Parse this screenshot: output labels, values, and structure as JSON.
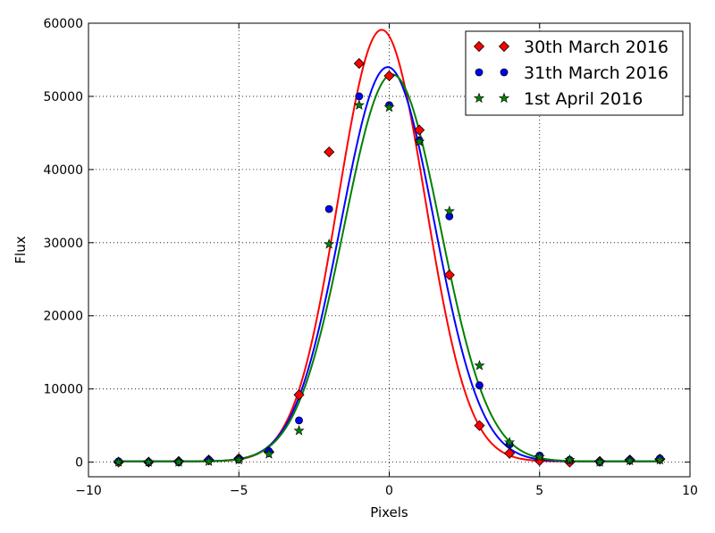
{
  "chart_data": {
    "type": "scatter",
    "xlabel": "Pixels",
    "ylabel": "Flux",
    "xlim": [
      -10,
      10
    ],
    "ylim": [
      -2000,
      60000
    ],
    "xticks": [
      -10,
      -5,
      0,
      5,
      10
    ],
    "yticks": [
      0,
      10000,
      20000,
      30000,
      40000,
      50000,
      60000
    ],
    "grid": true,
    "legend_position": "top-right",
    "series": [
      {
        "name": "30th March 2016",
        "marker": "diamond",
        "color": "#ff0000",
        "x": [
          -9,
          -8,
          -7,
          -6,
          -5,
          -4,
          -3,
          -2,
          -1,
          0,
          1,
          2,
          3,
          4,
          5,
          6,
          7,
          8,
          9
        ],
        "y": [
          0,
          0,
          100,
          300,
          500,
          1400,
          9200,
          42400,
          54500,
          52800,
          45400,
          25600,
          5000,
          1200,
          200,
          0,
          100,
          300,
          400
        ]
      },
      {
        "name": "31th March 2016",
        "marker": "circle",
        "color": "#0000ff",
        "x": [
          -9,
          -8,
          -7,
          -6,
          -5,
          -4,
          -3,
          -2,
          -1,
          0,
          1,
          2,
          3,
          4,
          5,
          6,
          7,
          8,
          9
        ],
        "y": [
          100,
          0,
          0,
          300,
          400,
          1500,
          5700,
          34600,
          50000,
          48800,
          44000,
          33600,
          10500,
          2400,
          900,
          300,
          0,
          300,
          500
        ]
      },
      {
        "name": "1st April 2016",
        "marker": "star",
        "color": "#008000",
        "x": [
          -9,
          -8,
          -7,
          -6,
          -5,
          -4,
          -3,
          -2,
          -1,
          0,
          1,
          2,
          3,
          4,
          5,
          6,
          7,
          8,
          9
        ],
        "y": [
          0,
          0,
          0,
          100,
          300,
          1100,
          4300,
          29800,
          48800,
          48500,
          43800,
          34300,
          13200,
          2700,
          700,
          300,
          0,
          200,
          300
        ]
      }
    ],
    "fits": [
      {
        "color": "#ff0000",
        "amplitude": 59000,
        "center": -0.25,
        "sigma": 1.45,
        "offset": 100
      },
      {
        "color": "#0000ff",
        "amplitude": 53900,
        "center": -0.05,
        "sigma": 1.55,
        "offset": 100
      },
      {
        "color": "#008000",
        "amplitude": 52900,
        "center": 0.1,
        "sigma": 1.6,
        "offset": 100
      }
    ]
  }
}
